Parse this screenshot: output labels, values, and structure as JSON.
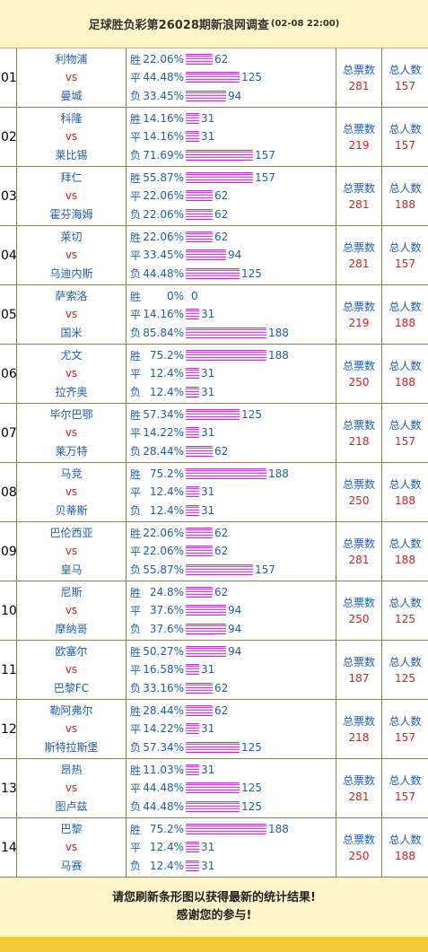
{
  "header": {
    "title": "足球胜负彩第26028期新浪网调查",
    "date": "(02-08 22:00)"
  },
  "labels": {
    "vs": "vs",
    "win": "胜",
    "draw": "平",
    "loss": "负",
    "total_votes": "总票数",
    "total_people": "总人数"
  },
  "matches": [
    {
      "no": "01",
      "home": "利物浦",
      "away": "曼城",
      "win": {
        "pct": "22.06%",
        "cnt": "62"
      },
      "draw": {
        "pct": "44.48%",
        "cnt": "125"
      },
      "loss": {
        "pct": "33.45%",
        "cnt": "94"
      },
      "votes": "281",
      "people": "157"
    },
    {
      "no": "02",
      "home": "科隆",
      "away": "莱比锡",
      "win": {
        "pct": "14.16%",
        "cnt": "31"
      },
      "draw": {
        "pct": "14.16%",
        "cnt": "31"
      },
      "loss": {
        "pct": "71.69%",
        "cnt": "157"
      },
      "votes": "219",
      "people": "157"
    },
    {
      "no": "03",
      "home": "拜仁",
      "away": "霍芬海姆",
      "win": {
        "pct": "55.87%",
        "cnt": "157"
      },
      "draw": {
        "pct": "22.06%",
        "cnt": "62"
      },
      "loss": {
        "pct": "22.06%",
        "cnt": "62"
      },
      "votes": "281",
      "people": "188"
    },
    {
      "no": "04",
      "home": "莱切",
      "away": "乌迪内斯",
      "win": {
        "pct": "22.06%",
        "cnt": "62"
      },
      "draw": {
        "pct": "33.45%",
        "cnt": "94"
      },
      "loss": {
        "pct": "44.48%",
        "cnt": "125"
      },
      "votes": "281",
      "people": "157"
    },
    {
      "no": "05",
      "home": "萨索洛",
      "away": "国米",
      "win": {
        "pct": "0%",
        "cnt": "0"
      },
      "draw": {
        "pct": "14.16%",
        "cnt": "31"
      },
      "loss": {
        "pct": "85.84%",
        "cnt": "188"
      },
      "votes": "219",
      "people": "188"
    },
    {
      "no": "06",
      "home": "尤文",
      "away": "拉齐奥",
      "win": {
        "pct": "75.2%",
        "cnt": "188"
      },
      "draw": {
        "pct": "12.4%",
        "cnt": "31"
      },
      "loss": {
        "pct": "12.4%",
        "cnt": "31"
      },
      "votes": "250",
      "people": "188"
    },
    {
      "no": "07",
      "home": "毕尔巴鄂",
      "away": "莱万特",
      "win": {
        "pct": "57.34%",
        "cnt": "125"
      },
      "draw": {
        "pct": "14.22%",
        "cnt": "31"
      },
      "loss": {
        "pct": "28.44%",
        "cnt": "62"
      },
      "votes": "218",
      "people": "157"
    },
    {
      "no": "08",
      "home": "马竞",
      "away": "贝蒂斯",
      "win": {
        "pct": "75.2%",
        "cnt": "188"
      },
      "draw": {
        "pct": "12.4%",
        "cnt": "31"
      },
      "loss": {
        "pct": "12.4%",
        "cnt": "31"
      },
      "votes": "250",
      "people": "188"
    },
    {
      "no": "09",
      "home": "巴伦西亚",
      "away": "皇马",
      "win": {
        "pct": "22.06%",
        "cnt": "62"
      },
      "draw": {
        "pct": "22.06%",
        "cnt": "62"
      },
      "loss": {
        "pct": "55.87%",
        "cnt": "157"
      },
      "votes": "281",
      "people": "188"
    },
    {
      "no": "10",
      "home": "尼斯",
      "away": "摩纳哥",
      "win": {
        "pct": "24.8%",
        "cnt": "62"
      },
      "draw": {
        "pct": "37.6%",
        "cnt": "94"
      },
      "loss": {
        "pct": "37.6%",
        "cnt": "94"
      },
      "votes": "250",
      "people": "125"
    },
    {
      "no": "11",
      "home": "欧塞尔",
      "away": "巴黎FC",
      "win": {
        "pct": "50.27%",
        "cnt": "94"
      },
      "draw": {
        "pct": "16.58%",
        "cnt": "31"
      },
      "loss": {
        "pct": "33.16%",
        "cnt": "62"
      },
      "votes": "187",
      "people": "125"
    },
    {
      "no": "12",
      "home": "勒阿弗尔",
      "away": "斯特拉斯堡",
      "win": {
        "pct": "28.44%",
        "cnt": "62"
      },
      "draw": {
        "pct": "14.22%",
        "cnt": "31"
      },
      "loss": {
        "pct": "57.34%",
        "cnt": "125"
      },
      "votes": "218",
      "people": "157"
    },
    {
      "no": "13",
      "home": "昂热",
      "away": "图卢兹",
      "win": {
        "pct": "11.03%",
        "cnt": "31"
      },
      "draw": {
        "pct": "44.48%",
        "cnt": "125"
      },
      "loss": {
        "pct": "44.48%",
        "cnt": "125"
      },
      "votes": "281",
      "people": "157"
    },
    {
      "no": "14",
      "home": "巴黎",
      "away": "马赛",
      "win": {
        "pct": "75.2%",
        "cnt": "188"
      },
      "draw": {
        "pct": "12.4%",
        "cnt": "31"
      },
      "loss": {
        "pct": "12.4%",
        "cnt": "31"
      },
      "votes": "250",
      "people": "188"
    }
  ],
  "footer": {
    "line1": "请您刷新条形图以获得最新的统计结果!",
    "line2": "感谢您的参与!"
  },
  "colors": {
    "header_bg": "#fff5c8",
    "team_text": "#1f5fa8",
    "vs_text": "#d42020",
    "bar": "#c64cd1",
    "bottom_strip": "#f3c93a"
  }
}
